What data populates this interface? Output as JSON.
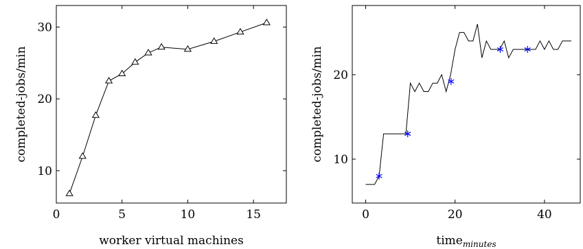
{
  "chart_data": [
    {
      "type": "line",
      "xlabel": "worker virtual machines",
      "ylabel": "completed-jobs/min",
      "xlim": [
        0,
        17.5
      ],
      "ylim": [
        5.5,
        33
      ],
      "xticks": [
        0,
        5,
        10,
        15
      ],
      "yticks": [
        10,
        20,
        30
      ],
      "grid": false,
      "series": [
        {
          "marker": "triangle",
          "color": "#000000",
          "x": [
            1,
            2,
            3,
            4,
            5,
            6,
            7,
            8,
            10,
            12,
            14,
            16
          ],
          "y": [
            6.8,
            12.0,
            17.7,
            22.5,
            23.5,
            25.1,
            26.4,
            27.2,
            26.9,
            28.0,
            29.3,
            30.6
          ]
        }
      ]
    },
    {
      "type": "line",
      "xlabel": "time",
      "xlabel_subscript": "minutes",
      "ylabel": "completed-jobs/min",
      "xlim": [
        -3,
        48
      ],
      "ylim": [
        4.8,
        28.2
      ],
      "xticks": [
        0,
        20,
        40
      ],
      "yticks": [
        10,
        20
      ],
      "grid": false,
      "series": [
        {
          "marker": "none",
          "color": "#000000",
          "x": [
            0,
            2,
            3,
            4,
            9,
            10,
            11,
            12,
            13,
            14,
            15,
            16,
            17,
            18,
            19,
            20,
            21,
            22,
            23,
            24,
            25,
            26,
            27,
            28,
            30,
            31,
            32,
            33,
            34,
            35,
            36,
            38,
            39,
            40,
            41,
            42,
            43,
            44,
            45,
            46
          ],
          "y": [
            7,
            7,
            8,
            13,
            13,
            19,
            18,
            19,
            18,
            18,
            19,
            19,
            20,
            18,
            20,
            23,
            25,
            25,
            24,
            24,
            26,
            22,
            24,
            23,
            23,
            24,
            22,
            23,
            23,
            23,
            23,
            23,
            24,
            23,
            24,
            23,
            23,
            24,
            24,
            24
          ]
        },
        {
          "marker": "asterisk",
          "color": "#0000ff",
          "x": [
            3,
            9.4,
            19.1,
            30.1,
            36.2
          ],
          "y": [
            8,
            13,
            19.2,
            23,
            23
          ]
        }
      ]
    }
  ]
}
